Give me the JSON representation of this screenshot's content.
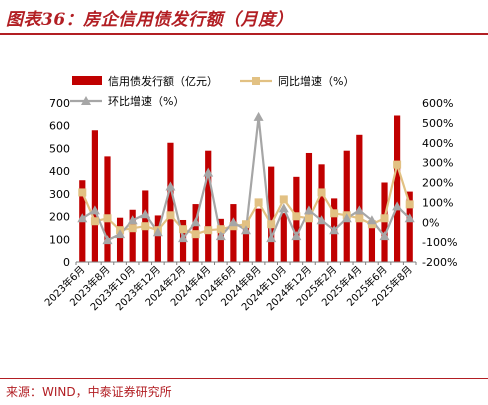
{
  "figure": {
    "title": "图表36：房企信用债发行额（月度）",
    "source": "来源：WIND，中泰证券研究所"
  },
  "colors": {
    "accent": "#b21e23",
    "bar": "#c00000",
    "yoy": "#e2c183",
    "mom": "#a6a6a6",
    "axis": "#7f7f7f"
  },
  "chart_data": {
    "type": "bar",
    "categories": [
      "2023年6月",
      "2023年7月",
      "2023年8月",
      "2023年9月",
      "2023年10月",
      "2023年11月",
      "2023年12月",
      "2024年1月",
      "2024年2月",
      "2024年3月",
      "2024年4月",
      "2024年5月",
      "2024年6月",
      "2024年7月",
      "2024年8月",
      "2024年9月",
      "2024年10月",
      "2024年11月",
      "2024年12月",
      "2025年1月",
      "2025年2月",
      "2025年3月",
      "2025年4月",
      "2025年5月",
      "2025年6月",
      "2025年7月",
      "2025年8月"
    ],
    "xtick_labels": [
      "2023年6月",
      "2023年8月",
      "2023年10月",
      "2023年12月",
      "2024年2月",
      "2024年4月",
      "2024年6月",
      "2024年8月",
      "2024年10月",
      "2024年12月",
      "2025年2月",
      "2025年4月",
      "2025年6月",
      "2025年8月"
    ],
    "series": [
      {
        "name": "信用债发行额（亿元）",
        "type": "bar",
        "axis": "left",
        "values": [
          360,
          580,
          465,
          195,
          230,
          315,
          205,
          525,
          185,
          255,
          490,
          190,
          255,
          165,
          235,
          420,
          215,
          375,
          480,
          430,
          280,
          490,
          560,
          170,
          350,
          645,
          310
        ]
      },
      {
        "name": "同比增速（%）",
        "type": "line",
        "marker": "square",
        "axis": "right",
        "values": [
          150,
          5,
          20,
          -40,
          -30,
          -20,
          -40,
          35,
          -35,
          -60,
          -40,
          -35,
          -20,
          -10,
          100,
          -10,
          115,
          30,
          20,
          150,
          45,
          35,
          20,
          -10,
          20,
          290,
          90
        ]
      },
      {
        "name": "环比增速（%）",
        "type": "line",
        "marker": "triangle",
        "axis": "right",
        "values": [
          20,
          60,
          -90,
          -60,
          10,
          40,
          -50,
          180,
          -80,
          0,
          250,
          -70,
          0,
          -40,
          530,
          -80,
          70,
          -70,
          60,
          10,
          -40,
          20,
          60,
          10,
          -70,
          80,
          20
        ]
      }
    ],
    "y_left": {
      "ylim": [
        0,
        700
      ],
      "ticks": [
        0,
        100,
        200,
        300,
        400,
        500,
        600,
        700
      ]
    },
    "y_right": {
      "ylim": [
        -200,
        600
      ],
      "ticks": [
        "-200%",
        "-100%",
        "0%",
        "100%",
        "200%",
        "300%",
        "400%",
        "500%",
        "600%"
      ]
    },
    "legend_position": "top",
    "grid": false
  }
}
